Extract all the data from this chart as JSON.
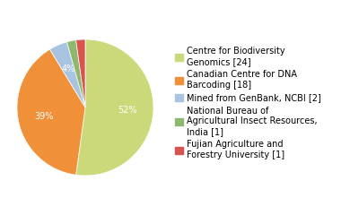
{
  "labels": [
    "Centre for Biodiversity\nGenomics [24]",
    "Canadian Centre for DNA\nBarcoding [18]",
    "Mined from GenBank, NCBI [2]",
    "National Bureau of\nAgricultural Insect Resources,\nIndia [1]",
    "Fujian Agriculture and\nForestry University [1]"
  ],
  "values": [
    24,
    18,
    2,
    1,
    1
  ],
  "colors": [
    "#ccd97a",
    "#f0913a",
    "#a8c4e0",
    "#8db86e",
    "#d9534f"
  ],
  "pct_labels": [
    "52%",
    "39%",
    "4%",
    "2%",
    "2%"
  ],
  "legend_labels": [
    "Centre for Biodiversity\nGenomics [24]",
    "Canadian Centre for DNA\nBarcoding [18]",
    "Mined from GenBank, NCBI [2]",
    "National Bureau of\nAgricultural Insect Resources,\nIndia [1]",
    "Fujian Agriculture and\nForestry University [1]"
  ],
  "text_color": "white",
  "fontsize_pct": 7,
  "fontsize_legend": 7
}
